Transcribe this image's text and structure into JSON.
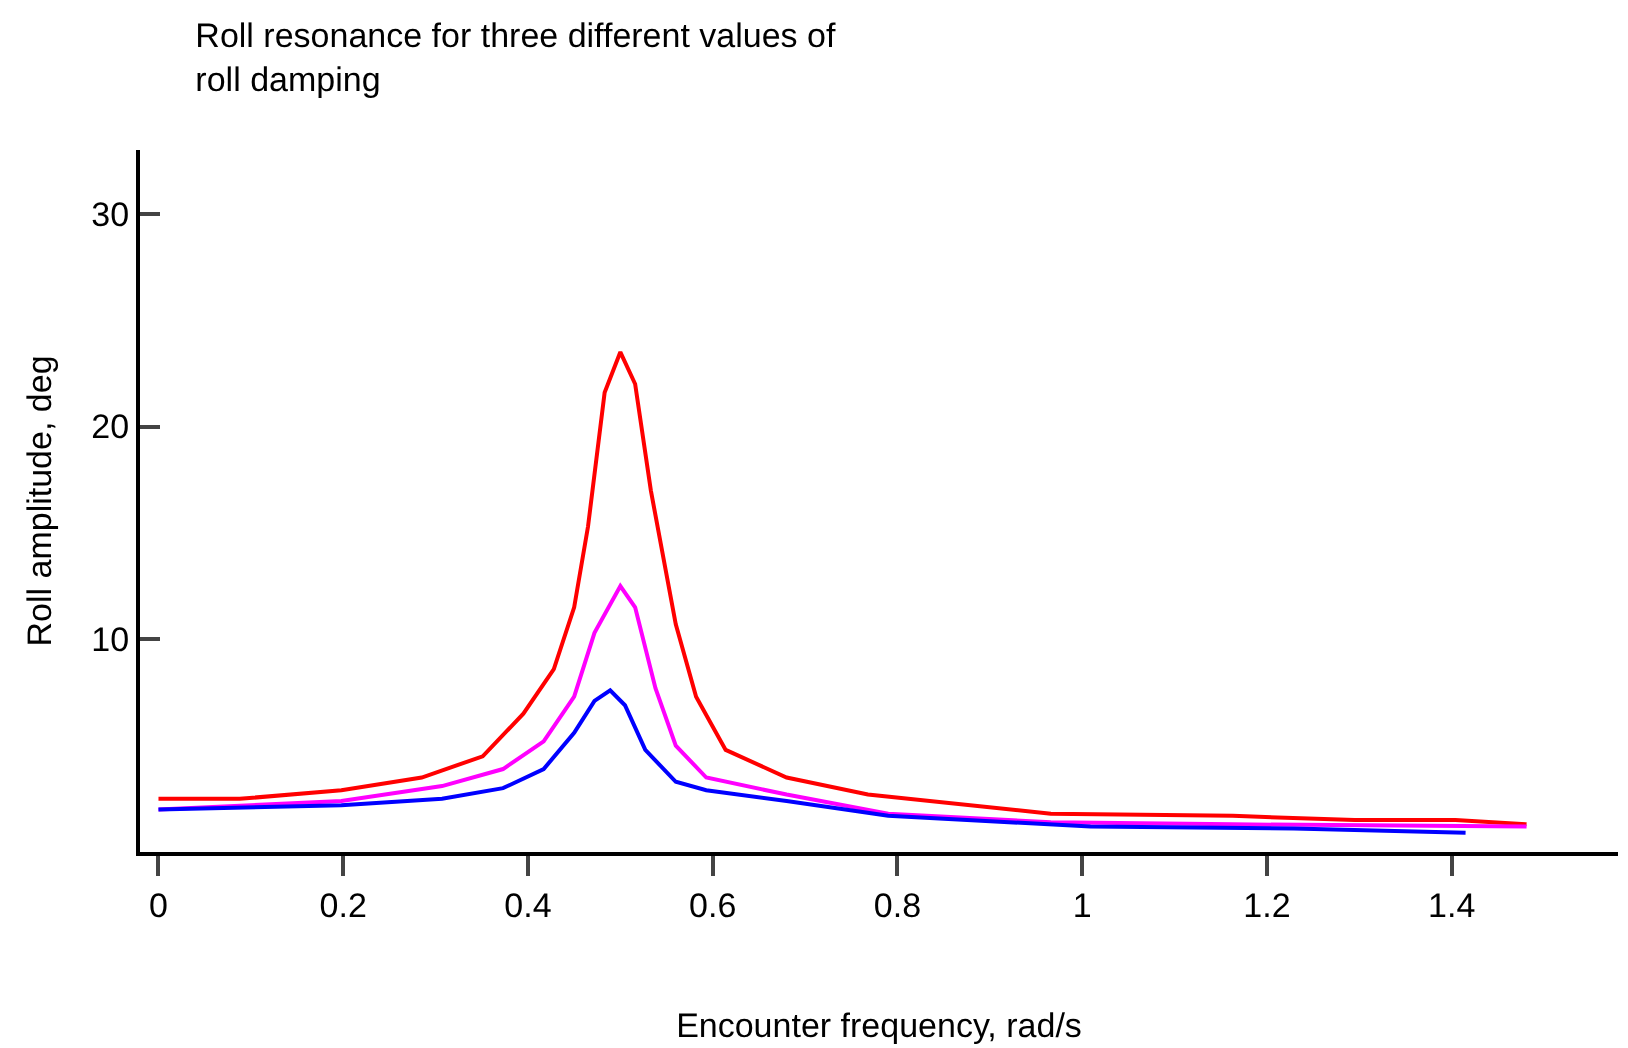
{
  "chart_data": {
    "type": "line",
    "title": "Roll resonance for three different values of roll damping",
    "xlabel": "Encounter frequency, rad/s",
    "ylabel": "Roll amplitude, deg",
    "xlim": [
      -0.02,
      1.58
    ],
    "ylim": [
      0,
      33
    ],
    "xticks": [
      0,
      0.2,
      0.4,
      0.6,
      0.8,
      1,
      1.2,
      1.4
    ],
    "yticks": [
      10,
      20,
      30
    ],
    "marker": "none",
    "line_style": "solid",
    "series": [
      {
        "color": "#ff0000",
        "x": [
          0,
          0.088,
          0.198,
          0.285,
          0.351,
          0.395,
          0.428,
          0.45,
          0.465,
          0.483,
          0.5,
          0.516,
          0.533,
          0.56,
          0.582,
          0.614,
          0.68,
          0.768,
          0.966,
          1.163,
          1.295,
          1.404,
          1.481
        ],
        "values": [
          2.5,
          2.5,
          2.9,
          3.5,
          4.5,
          6.5,
          8.6,
          11.5,
          15.3,
          21.6,
          23.5,
          22,
          17,
          10.7,
          7.3,
          4.8,
          3.5,
          2.7,
          1.8,
          1.7,
          1.5,
          1.5,
          1.3
        ]
      },
      {
        "color": "#ff00ff",
        "x": [
          0,
          0.198,
          0.307,
          0.373,
          0.417,
          0.45,
          0.472,
          0.5,
          0.516,
          0.538,
          0.56,
          0.593,
          0.68,
          0.79,
          0.966,
          1.163,
          1.481
        ],
        "values": [
          2.0,
          2.4,
          3.1,
          3.9,
          5.2,
          7.3,
          10.3,
          12.5,
          11.5,
          7.7,
          5.0,
          3.5,
          2.7,
          1.8,
          1.4,
          1.3,
          1.2
        ]
      },
      {
        "color": "#0000ff",
        "x": [
          0,
          0.198,
          0.307,
          0.373,
          0.417,
          0.45,
          0.472,
          0.489,
          0.505,
          0.527,
          0.56,
          0.593,
          0.68,
          0.79,
          1.009,
          1.229,
          1.415
        ],
        "values": [
          2.0,
          2.2,
          2.5,
          3.0,
          3.9,
          5.6,
          7.1,
          7.6,
          6.9,
          4.8,
          3.3,
          2.9,
          2.4,
          1.7,
          1.2,
          1.1,
          0.9
        ]
      }
    ]
  }
}
